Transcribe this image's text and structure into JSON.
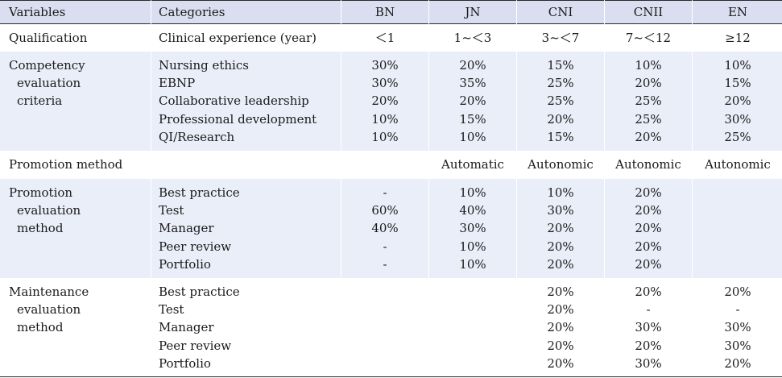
{
  "header": {
    "variables": "Variables",
    "categories": "Categories",
    "levels": [
      "BN",
      "JN",
      "CNI",
      "CNII",
      "EN"
    ]
  },
  "qualification": {
    "label": "Qualification",
    "category": "Clinical experience (year)",
    "values": [
      "＜1",
      "1~＜3",
      "3~＜7",
      "7~＜12",
      "≥12"
    ]
  },
  "competency": {
    "label_lines": [
      "Competency",
      "evaluation",
      "criteria"
    ],
    "categories": [
      "Nursing ethics",
      "EBNP",
      "Collaborative leadership",
      "Professional development",
      "QI/Research"
    ],
    "columns": [
      [
        "30%",
        "30%",
        "20%",
        "10%",
        "10%"
      ],
      [
        "20%",
        "35%",
        "20%",
        "15%",
        "10%"
      ],
      [
        "15%",
        "25%",
        "25%",
        "20%",
        "15%"
      ],
      [
        "10%",
        "20%",
        "25%",
        "25%",
        "20%"
      ],
      [
        "10%",
        "15%",
        "20%",
        "30%",
        "25%"
      ]
    ]
  },
  "promotion_method": {
    "label": "Promotion method",
    "values": [
      "",
      "Automatic",
      "Autonomic",
      "Autonomic",
      "Autonomic"
    ]
  },
  "promotion_eval": {
    "label_lines": [
      "Promotion",
      "evaluation",
      "method"
    ],
    "categories": [
      "Best practice",
      "Test",
      "Manager",
      "Peer review",
      "Portfolio"
    ],
    "columns": [
      [
        "-",
        "60%",
        "40%",
        "-",
        "-"
      ],
      [
        "10%",
        "40%",
        "30%",
        "10%",
        "10%"
      ],
      [
        "10%",
        "30%",
        "20%",
        "20%",
        "20%"
      ],
      [
        "20%",
        "20%",
        "20%",
        "20%",
        "20%"
      ],
      [
        "",
        "",
        "",
        "",
        ""
      ]
    ]
  },
  "maintenance_eval": {
    "label_lines": [
      "Maintenance",
      "evaluation",
      "method"
    ],
    "categories": [
      "Best practice",
      "Test",
      "Manager",
      "Peer review",
      "Portfolio"
    ],
    "columns": [
      [
        "",
        "",
        "",
        "",
        ""
      ],
      [
        "",
        "",
        "",
        "",
        ""
      ],
      [
        "20%",
        "20%",
        "20%",
        "20%",
        "20%"
      ],
      [
        "20%",
        "-",
        "30%",
        "20%",
        "30%"
      ],
      [
        "20%",
        "-",
        "30%",
        "30%",
        "20%"
      ]
    ]
  }
}
